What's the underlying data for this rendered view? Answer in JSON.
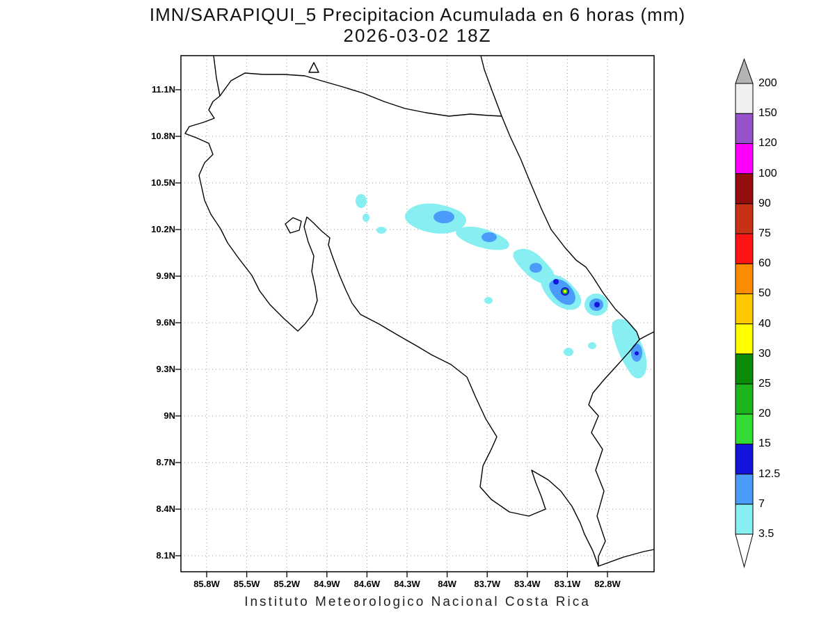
{
  "title": {
    "line1": "IMN/SARAPIQUI_5 Precipitacion Acumulada en 6 horas (mm)",
    "line2": "2026-03-02 18Z"
  },
  "caption": "Instituto Meteorologico Nacional Costa Rica",
  "map": {
    "x_tick_labels": [
      "85.8W",
      "85.5W",
      "85.2W",
      "84.9W",
      "84.6W",
      "84.3W",
      "84W",
      "83.7W",
      "83.4W",
      "83.1W",
      "82.8W"
    ],
    "y_tick_labels": [
      "11.1N",
      "10.8N",
      "10.5N",
      "10.2N",
      "9.9N",
      "9.6N",
      "9.3N",
      "9N",
      "8.7N",
      "8.4N",
      "8.1N"
    ]
  },
  "colorbar": {
    "levels_bottom_to_top": [
      "3.5",
      "7",
      "12.5",
      "15",
      "20",
      "25",
      "30",
      "40",
      "50",
      "60",
      "75",
      "90",
      "100",
      "120",
      "150",
      "200"
    ],
    "segment_colors_bottom_to_top": [
      "#87EFF1",
      "#4A9BFA",
      "#1414DC",
      "#32DC32",
      "#1EB41E",
      "#0A8C0A",
      "#FFFF00",
      "#FFC800",
      "#FF8C00",
      "#FF1414",
      "#C83214",
      "#960F0F",
      "#FF00FF",
      "#9852CC",
      "#F0F0F0"
    ],
    "cap_top_color": "#B4B4B4",
    "cap_bottom_color": "#FFFFFF"
  },
  "palette": {
    "light": "#87EFF1",
    "mid": "#4A9BFA",
    "dark": "#1414DC",
    "green": "#1EB41E",
    "yellow": "#FFFF00"
  }
}
